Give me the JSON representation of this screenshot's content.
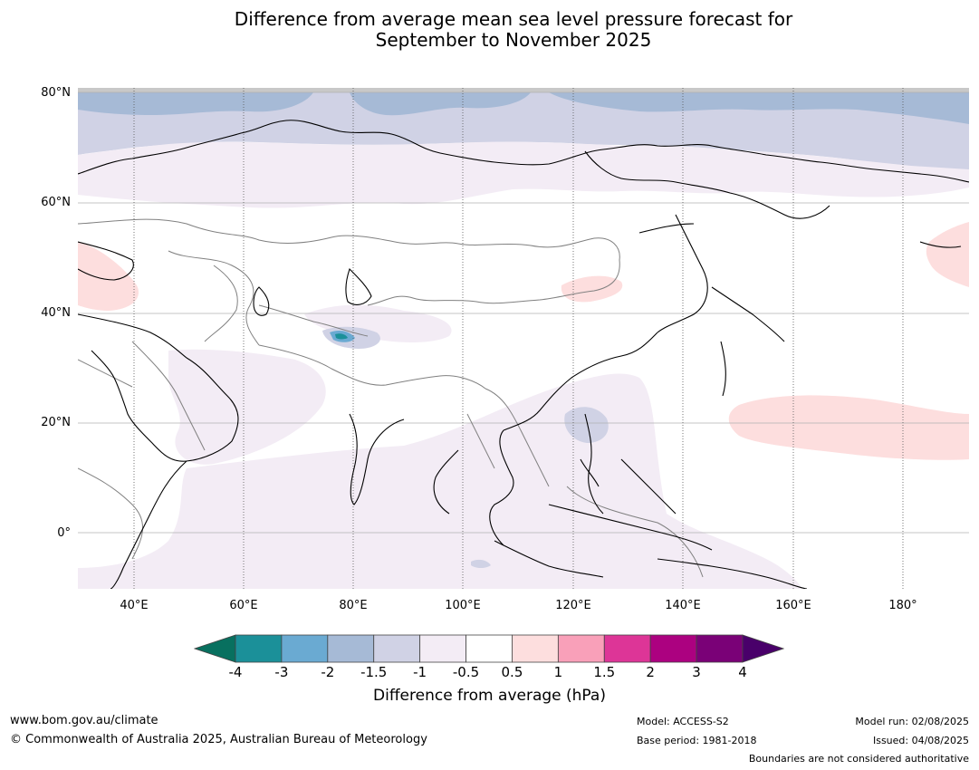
{
  "title_line1": "Difference from average mean sea level pressure forecast for",
  "title_line2": "September to November 2025",
  "latitude_labels": [
    "80°N",
    "60°N",
    "40°N",
    "20°N",
    "0°"
  ],
  "longitude_labels": [
    "40°E",
    "60°E",
    "80°E",
    "100°E",
    "120°E",
    "140°E",
    "160°E",
    "180°"
  ],
  "colorbar": {
    "ticks": [
      "-4",
      "-3",
      "-2",
      "-1.5",
      "-1",
      "-0.5",
      "0.5",
      "1",
      "1.5",
      "2",
      "3",
      "4"
    ],
    "colors": [
      "#08705f",
      "#1b9099",
      "#6aaad2",
      "#a6bad6",
      "#d0d2e5",
      "#f3ecf5",
      "#ffffff",
      "#fddede",
      "#f9a0b9",
      "#dd3597",
      "#ac0180",
      "#7a0177",
      "#49006a"
    ],
    "label": "Difference from average (hPa)"
  },
  "footer": {
    "website": "www.bom.gov.au/climate",
    "copyright": "© Commonwealth of Australia 2025, Australian Bureau of Meteorology",
    "model": "Model: ACCESS-S2",
    "base_period": "Base period: 1981-2018",
    "model_run": "Model run: 02/08/2025",
    "issued": "Issued: 04/08/2025",
    "disclaimer": "Boundaries are not considered authoritative"
  }
}
